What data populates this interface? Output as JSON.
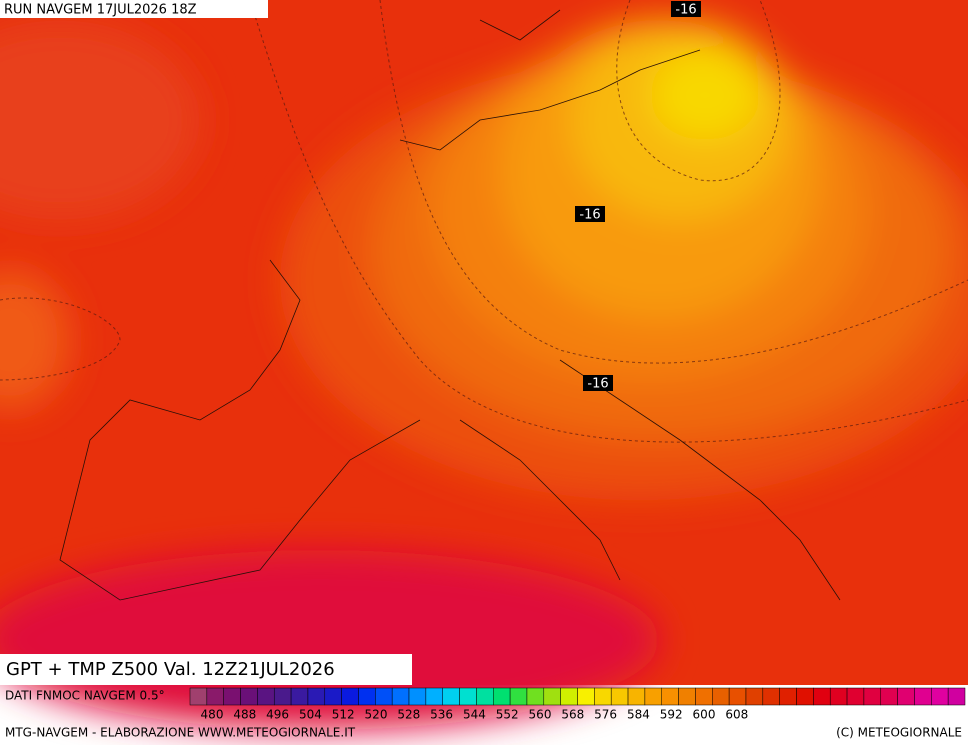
{
  "header": {
    "run": "RUN NAVGEM 17JUL2026 18Z"
  },
  "contour_labels": [
    "-16",
    "-16",
    "-16"
  ],
  "title": "GPT + TMP Z500 Val. 12Z21JUL2026",
  "legend": {
    "source": "DATI FNMOC NAVGEM 0.5°",
    "ticks": [
      480,
      488,
      496,
      504,
      512,
      520,
      528,
      536,
      544,
      552,
      560,
      568,
      576,
      584,
      592,
      600,
      608
    ],
    "colors": [
      "#a0406e",
      "#8a1a6a",
      "#7a1070",
      "#6a1078",
      "#5a1482",
      "#4a1a8c",
      "#3a1aa0",
      "#2a1ab4",
      "#1a1ac8",
      "#0a1ae0",
      "#0030f0",
      "#0050f8",
      "#0070ff",
      "#0090ff",
      "#00b0ff",
      "#00d0f0",
      "#00e0d0",
      "#00e0a0",
      "#00e070",
      "#30e040",
      "#70e020",
      "#a0e010",
      "#d0f000",
      "#f8f000",
      "#f8d800",
      "#f8c800",
      "#f8b400",
      "#f8a000",
      "#f89000",
      "#f08000",
      "#f07000",
      "#e86000",
      "#e85000",
      "#e04000",
      "#e03000",
      "#e02000",
      "#e01000",
      "#e00010",
      "#e00020",
      "#e00030",
      "#e00040",
      "#e00050",
      "#e00070",
      "#e00090",
      "#e000a0",
      "#d000a0"
    ]
  },
  "footer": {
    "credit": "MTG-NAVGEM - ELABORAZIONE WWW.METEOGIORNALE.IT",
    "copyright": "(C) METEOGIORNALE"
  }
}
